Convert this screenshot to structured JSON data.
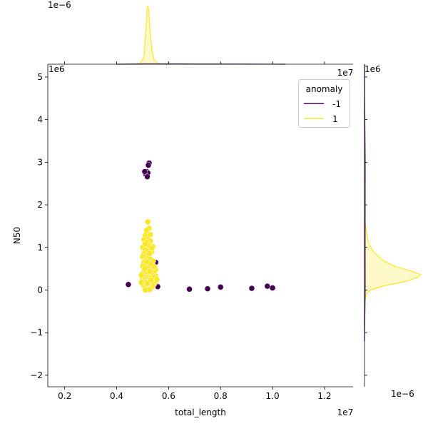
{
  "chart_data": {
    "type": "scatter",
    "layout": "jointplot",
    "xlabel": "total_length",
    "ylabel": "N50",
    "x_offset_text": "1e7",
    "y_offset_text": "1e6",
    "x_ticks": [
      0.2,
      0.4,
      0.6,
      0.8,
      1.0,
      1.2
    ],
    "y_ticks": [
      -2,
      -1,
      0,
      1,
      2,
      3,
      4,
      5
    ],
    "xlim": [
      0.135,
      1.31
    ],
    "ylim": [
      -2.27,
      5.3
    ],
    "legend": {
      "title": "anomaly",
      "placement": "top-right",
      "entries": [
        {
          "label": "-1",
          "color": "#440154"
        },
        {
          "label": "1",
          "color": "#fde725"
        }
      ]
    },
    "series": [
      {
        "name": "-1",
        "color": "#440154",
        "points": [
          [
            0.445,
            0.13
          ],
          [
            0.525,
            2.98
          ],
          [
            0.522,
            2.93
          ],
          [
            0.515,
            2.78
          ],
          [
            0.512,
            2.72
          ],
          [
            0.52,
            2.75
          ],
          [
            0.518,
            2.66
          ],
          [
            0.508,
            2.78
          ],
          [
            0.55,
            0.65
          ],
          [
            0.558,
            0.08
          ],
          [
            0.53,
            0.02
          ],
          [
            0.68,
            0.02
          ],
          [
            0.75,
            0.03
          ],
          [
            0.8,
            0.07
          ],
          [
            0.92,
            0.04
          ],
          [
            0.98,
            0.09
          ],
          [
            1.0,
            0.05
          ]
        ]
      },
      {
        "name": "1",
        "color": "#fde725",
        "points": [
          [
            0.52,
            1.6
          ],
          [
            0.525,
            1.45
          ],
          [
            0.515,
            1.4
          ],
          [
            0.53,
            1.3
          ],
          [
            0.51,
            1.28
          ],
          [
            0.52,
            1.2
          ],
          [
            0.505,
            1.18
          ],
          [
            0.53,
            1.15
          ],
          [
            0.515,
            1.12
          ],
          [
            0.525,
            1.05
          ],
          [
            0.54,
            1.02
          ],
          [
            0.5,
            1.0
          ],
          [
            0.51,
            0.95
          ],
          [
            0.52,
            0.92
          ],
          [
            0.535,
            0.9
          ],
          [
            0.505,
            0.85
          ],
          [
            0.515,
            0.82
          ],
          [
            0.525,
            0.8
          ],
          [
            0.5,
            0.78
          ],
          [
            0.52,
            0.75
          ],
          [
            0.53,
            0.72
          ],
          [
            0.51,
            0.7
          ],
          [
            0.54,
            0.68
          ],
          [
            0.505,
            0.65
          ],
          [
            0.515,
            0.62
          ],
          [
            0.525,
            0.6
          ],
          [
            0.535,
            0.58
          ],
          [
            0.5,
            0.56
          ],
          [
            0.51,
            0.55
          ],
          [
            0.52,
            0.52
          ],
          [
            0.53,
            0.5
          ],
          [
            0.54,
            0.48
          ],
          [
            0.55,
            0.47
          ],
          [
            0.505,
            0.46
          ],
          [
            0.515,
            0.45
          ],
          [
            0.525,
            0.43
          ],
          [
            0.535,
            0.42
          ],
          [
            0.545,
            0.4
          ],
          [
            0.5,
            0.39
          ],
          [
            0.51,
            0.38
          ],
          [
            0.52,
            0.36
          ],
          [
            0.53,
            0.35
          ],
          [
            0.54,
            0.34
          ],
          [
            0.55,
            0.33
          ],
          [
            0.505,
            0.32
          ],
          [
            0.515,
            0.3
          ],
          [
            0.525,
            0.29
          ],
          [
            0.535,
            0.28
          ],
          [
            0.545,
            0.27
          ],
          [
            0.5,
            0.26
          ],
          [
            0.51,
            0.25
          ],
          [
            0.52,
            0.23
          ],
          [
            0.53,
            0.22
          ],
          [
            0.54,
            0.21
          ],
          [
            0.55,
            0.2
          ],
          [
            0.505,
            0.19
          ],
          [
            0.515,
            0.18
          ],
          [
            0.525,
            0.17
          ],
          [
            0.535,
            0.16
          ],
          [
            0.545,
            0.15
          ],
          [
            0.5,
            0.14
          ],
          [
            0.51,
            0.13
          ],
          [
            0.52,
            0.12
          ],
          [
            0.53,
            0.11
          ],
          [
            0.54,
            0.1
          ],
          [
            0.505,
            0.09
          ],
          [
            0.515,
            0.08
          ],
          [
            0.525,
            0.07
          ],
          [
            0.535,
            0.06
          ],
          [
            0.51,
            0.05
          ],
          [
            0.52,
            0.04
          ],
          [
            0.53,
            0.03
          ],
          [
            0.515,
            0.02
          ],
          [
            0.525,
            0.01
          ],
          [
            0.51,
            0.0
          ],
          [
            0.52,
            0.52
          ],
          [
            0.545,
            0.55
          ],
          [
            0.545,
            0.3
          ],
          [
            0.555,
            0.25
          ],
          [
            0.53,
            0.62
          ],
          [
            0.495,
            0.35
          ],
          [
            0.495,
            0.18
          ],
          [
            0.535,
            0.98
          ],
          [
            0.51,
            1.08
          ],
          [
            0.526,
            0.86
          ],
          [
            0.516,
            0.66
          ],
          [
            0.528,
            0.44
          ],
          [
            0.508,
            0.5
          ],
          [
            0.532,
            0.24
          ],
          [
            0.518,
            0.15
          ]
        ]
      }
    ],
    "marginal_top": {
      "offset_text": "1e−6",
      "curves": [
        {
          "name": "1",
          "color": "#fde725",
          "points": [
            [
              0.45,
              0
            ],
            [
              0.49,
              0.01
            ],
            [
              0.505,
              0.12
            ],
            [
              0.512,
              0.55
            ],
            [
              0.517,
              0.92
            ],
            [
              0.52,
              1.0
            ],
            [
              0.523,
              0.95
            ],
            [
              0.528,
              0.6
            ],
            [
              0.535,
              0.25
            ],
            [
              0.545,
              0.07
            ],
            [
              0.56,
              0.01
            ],
            [
              0.6,
              0
            ]
          ]
        },
        {
          "name": "-1",
          "color": "#440154",
          "points": [
            [
              0.4,
              0
            ],
            [
              0.5,
              0.005
            ],
            [
              0.6,
              0.005
            ],
            [
              0.7,
              0.004
            ],
            [
              0.9,
              0.003
            ],
            [
              1.05,
              0
            ]
          ]
        }
      ]
    },
    "marginal_right": {
      "offset_text": "1e−6",
      "curves": [
        {
          "name": "1",
          "color": "#fde725",
          "points": [
            [
              -0.3,
              0
            ],
            [
              -0.1,
              0.03
            ],
            [
              0.0,
              0.1
            ],
            [
              0.1,
              0.35
            ],
            [
              0.2,
              0.72
            ],
            [
              0.3,
              0.95
            ],
            [
              0.36,
              1.0
            ],
            [
              0.45,
              0.82
            ],
            [
              0.55,
              0.55
            ],
            [
              0.7,
              0.32
            ],
            [
              0.9,
              0.16
            ],
            [
              1.1,
              0.07
            ],
            [
              1.4,
              0.03
            ],
            [
              1.7,
              0
            ]
          ]
        },
        {
          "name": "-1",
          "color": "#440154",
          "points": [
            [
              -1.2,
              0
            ],
            [
              0.0,
              0.012
            ],
            [
              1.0,
              0.01
            ],
            [
              3.0,
              0.012
            ],
            [
              4.5,
              0.003
            ],
            [
              5.3,
              0
            ]
          ]
        }
      ]
    }
  }
}
